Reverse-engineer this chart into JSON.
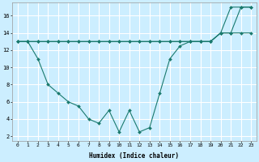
{
  "xlabel": "Humidex (Indice chaleur)",
  "bg_color": "#cceeff",
  "grid_color": "#ffffff",
  "line_color": "#1a7a6e",
  "xlim": [
    -0.5,
    23.5
  ],
  "ylim": [
    1.5,
    17.5
  ],
  "xticks": [
    0,
    1,
    2,
    3,
    4,
    5,
    6,
    7,
    8,
    9,
    10,
    11,
    12,
    13,
    14,
    15,
    16,
    17,
    18,
    19,
    20,
    21,
    22,
    23
  ],
  "yticks": [
    2,
    4,
    6,
    8,
    10,
    12,
    14,
    16
  ],
  "series1_x": [
    0,
    1,
    2,
    3,
    4,
    5,
    6,
    7,
    8,
    9,
    10,
    11,
    12,
    13,
    14,
    15,
    16,
    17,
    18,
    19,
    20,
    21,
    22,
    23
  ],
  "series1_y": [
    13,
    13,
    13,
    13,
    13,
    13,
    13,
    13,
    13,
    13,
    13,
    13,
    13,
    13,
    13,
    13,
    13,
    13,
    13,
    13,
    14,
    14,
    14,
    14
  ],
  "series2_x": [
    0,
    1,
    2,
    3,
    4,
    5,
    6,
    7,
    8,
    9,
    10,
    11,
    12,
    13,
    14,
    15,
    16,
    17,
    18,
    19,
    20,
    21,
    22,
    23
  ],
  "series2_y": [
    13,
    13,
    13,
    13,
    13,
    13,
    13,
    13,
    13,
    13,
    13,
    13,
    13,
    13,
    13,
    13,
    13,
    13,
    13,
    13,
    14,
    14,
    17,
    17
  ],
  "series3_x": [
    0,
    1,
    2,
    3,
    4,
    5,
    6,
    7,
    8,
    9,
    10,
    11,
    12,
    13,
    14,
    15,
    16,
    17,
    18,
    19,
    20,
    21,
    22,
    23
  ],
  "series3_y": [
    13,
    13,
    11,
    8,
    7,
    6,
    5.5,
    4,
    3.5,
    5,
    2.5,
    5,
    2.5,
    3,
    7,
    11,
    12.5,
    13,
    13,
    13,
    14,
    17,
    17,
    17
  ],
  "marker_size": 2.0,
  "line_width": 0.8,
  "xlabel_fontsize": 5.5,
  "tick_fontsize": 4.5
}
